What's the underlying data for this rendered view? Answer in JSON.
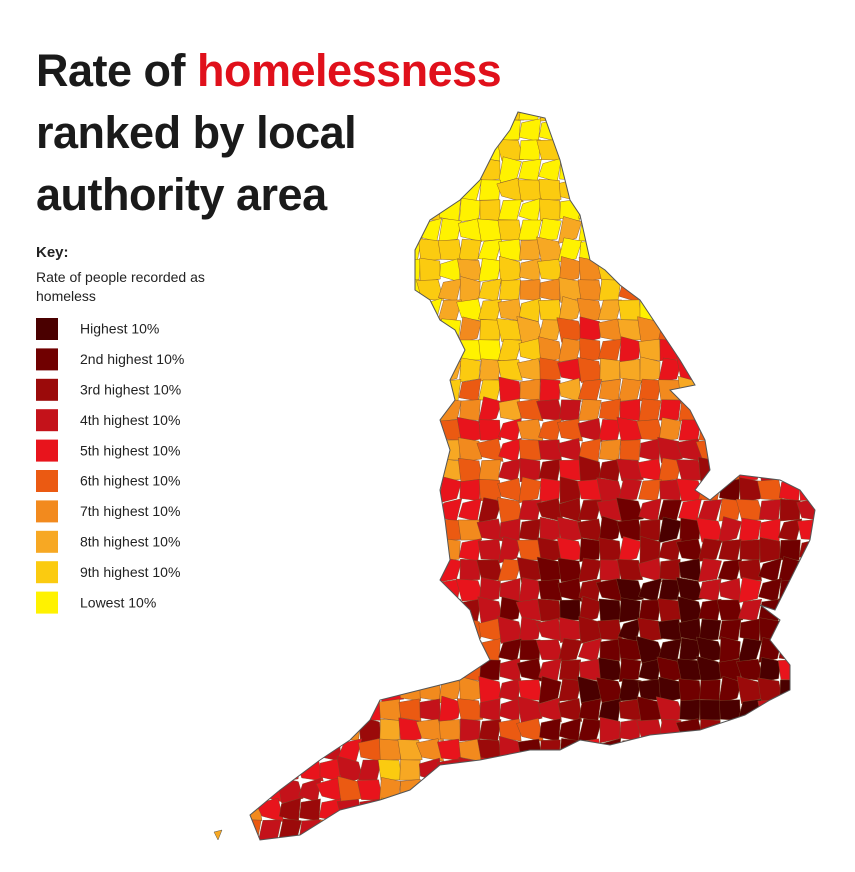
{
  "header": {
    "title_parts": [
      "Rate of",
      "homelessness",
      "ranked by local authority area"
    ]
  },
  "key": {
    "title": "Key:",
    "subtitle": "Rate of people recorded as homeless",
    "items": [
      {
        "label": "Highest 10%",
        "color": "#4a0000"
      },
      {
        "label": "2nd highest 10%",
        "color": "#700000"
      },
      {
        "label": "3rd highest 10%",
        "color": "#9b0a0a"
      },
      {
        "label": "4th highest 10%",
        "color": "#c4121a"
      },
      {
        "label": "5th highest 10%",
        "color": "#e8141c"
      },
      {
        "label": "6th highest 10%",
        "color": "#eb5a12"
      },
      {
        "label": "7th highest 10%",
        "color": "#f28a1e"
      },
      {
        "label": "8th highest 10%",
        "color": "#f7a823"
      },
      {
        "label": "9th highest 10%",
        "color": "#fbcb10"
      },
      {
        "label": "Lowest 10%",
        "color": "#fff200"
      }
    ]
  }
}
